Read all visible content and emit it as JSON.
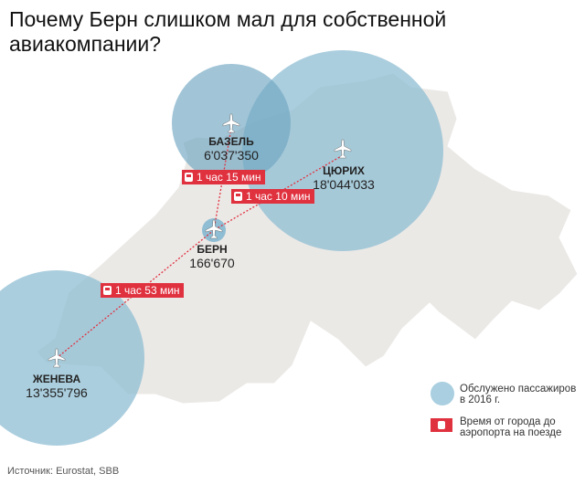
{
  "title": "Почему Берн слишком мал для собственной авиакомпании?",
  "colors": {
    "circle": "#8fbdd3",
    "train": "#e0313f",
    "land": "#ebe9e6"
  },
  "cities": [
    {
      "name": "БАЗЕЛЬ",
      "passengers": "6'037'350",
      "icon": "airplane-icon"
    },
    {
      "name": "ЦЮРИХ",
      "passengers": "18'044'033",
      "icon": "airplane-icon"
    },
    {
      "name": "БЕРН",
      "passengers": "166'670",
      "icon": "airplane-icon"
    },
    {
      "name": "ЖЕНЕВА",
      "passengers": "13'355'796",
      "icon": "airplane-icon"
    }
  ],
  "train_times": [
    "1 час 15 мин",
    "1 час 10 мин",
    "1 час 53 мин"
  ],
  "legend": {
    "circle": "Обслужено пассажиров в 2016 г.",
    "train": "Время от города до аэропорта на поезде"
  },
  "source": "Источник: Eurostat, SBB"
}
